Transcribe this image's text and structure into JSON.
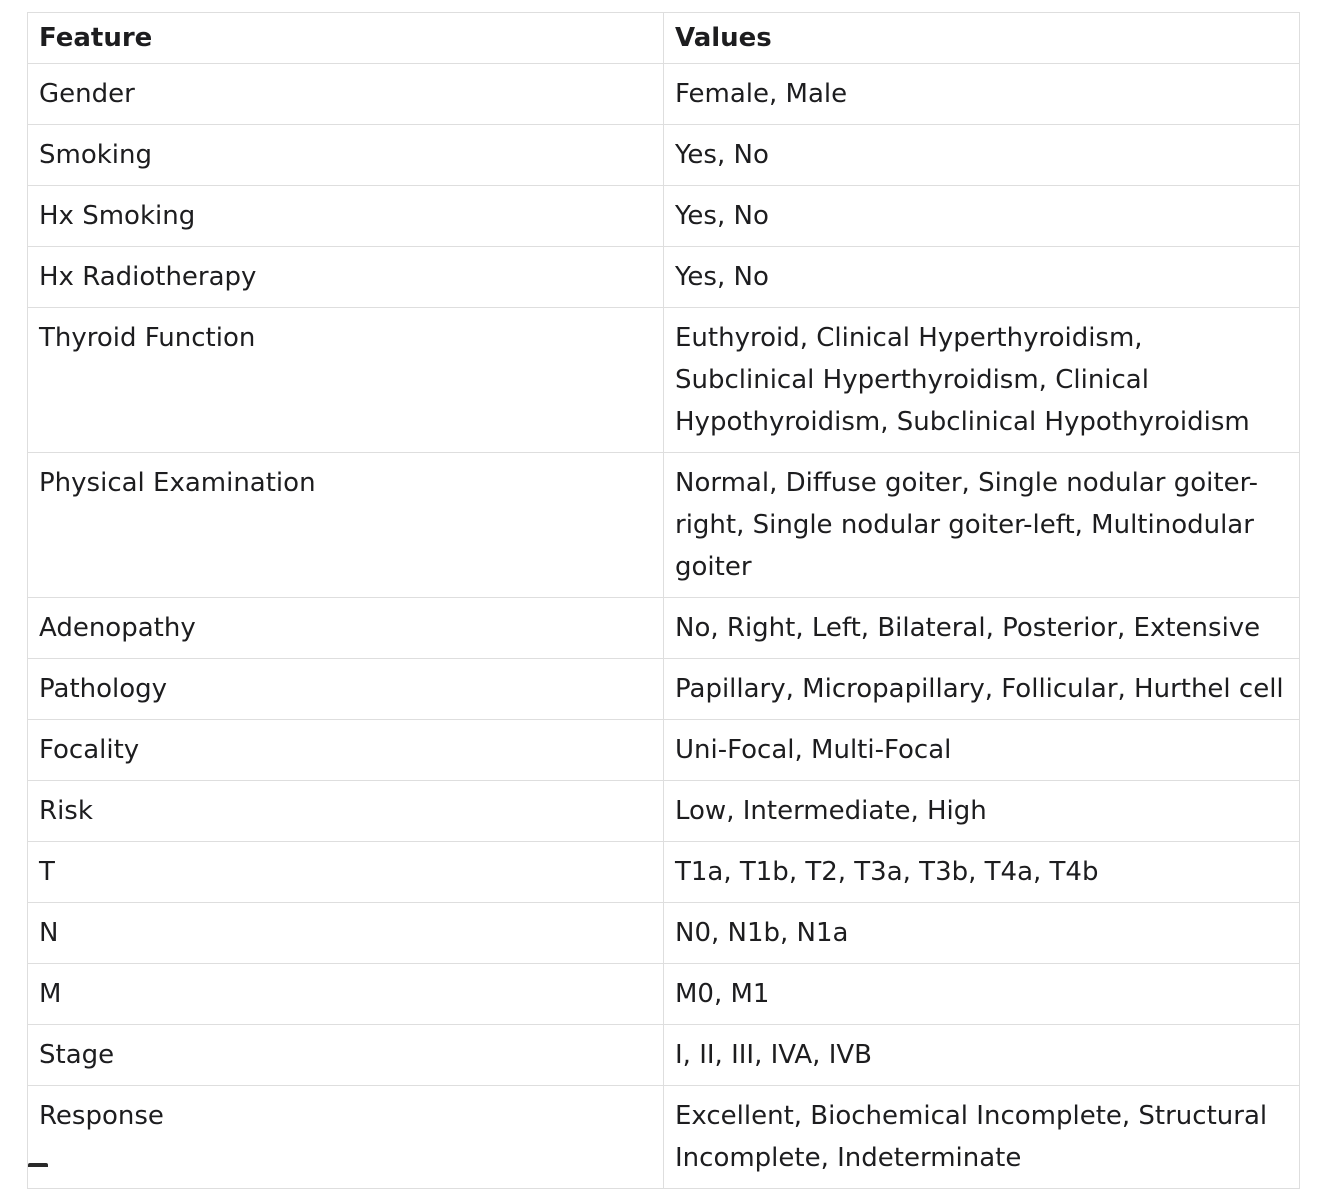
{
  "table": {
    "headers": [
      "Feature",
      "Values"
    ],
    "rows": [
      [
        "Gender",
        "Female, Male"
      ],
      [
        "Smoking",
        "Yes, No"
      ],
      [
        "Hx Smoking",
        "Yes, No"
      ],
      [
        "Hx Radiotherapy",
        "Yes, No"
      ],
      [
        "Thyroid Function",
        "Euthyroid, Clinical Hyperthyroidism, Subclinical Hyperthyroidism, Clinical Hypothyroidism, Subclinical Hypothyroidism"
      ],
      [
        "Physical Examination",
        "Normal, Diffuse goiter, Single nodular goiter-right, Single nodular goiter-left, Multinodular goiter"
      ],
      [
        "Adenopathy",
        "No, Right, Left, Bilateral, Posterior, Extensive"
      ],
      [
        "Pathology",
        "Papillary, Micropapillary, Follicular, Hurthel cell"
      ],
      [
        "Focality",
        "Uni-Focal, Multi-Focal"
      ],
      [
        "Risk",
        "Low, Intermediate, High"
      ],
      [
        "T",
        "T1a, T1b, T2, T3a, T3b, T4a, T4b"
      ],
      [
        "N",
        "N0, N1b, N1a"
      ],
      [
        "M",
        "M0, M1"
      ],
      [
        "Stage",
        "I, II, III, IVA, IVB"
      ],
      [
        "Response",
        "Excellent, Biochemical Incomplete, Structural Incomplete, Indeterminate"
      ]
    ]
  }
}
